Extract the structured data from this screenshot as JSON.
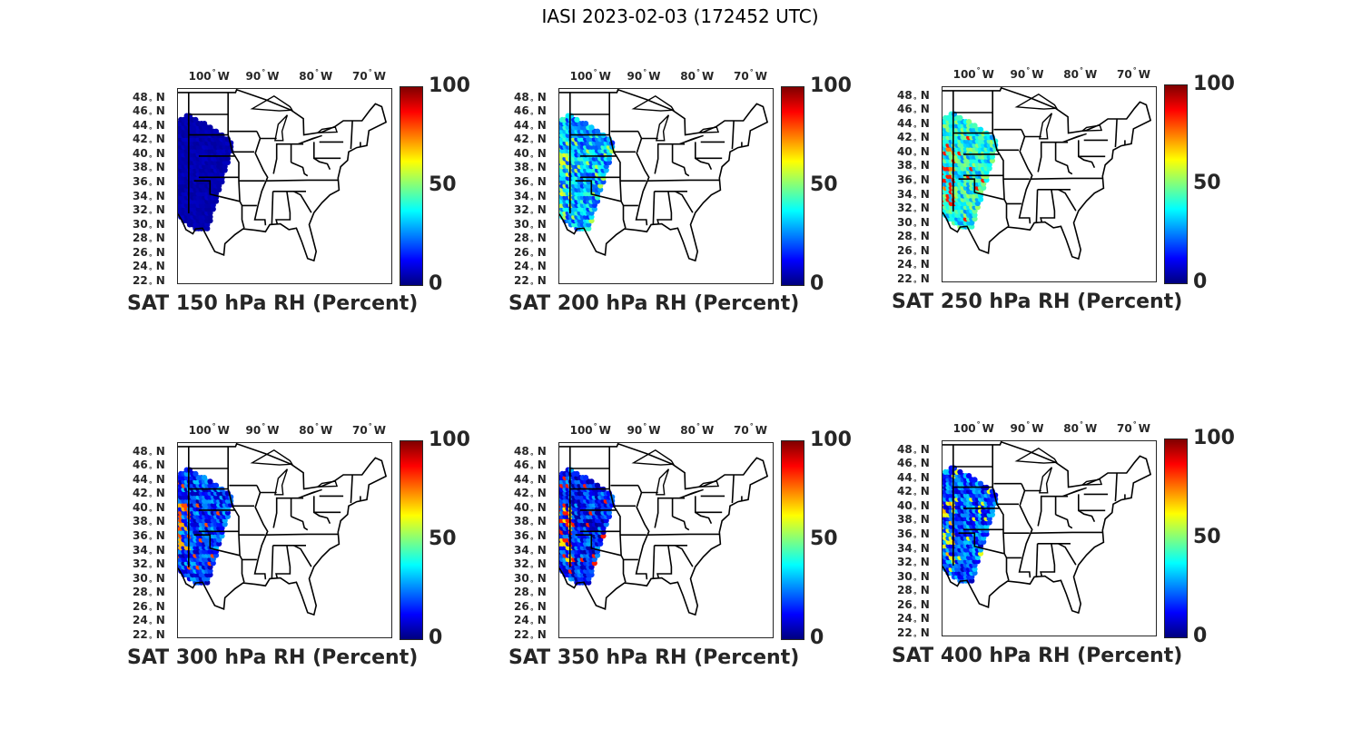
{
  "figure": {
    "title": "IASI 2023-02-03 (172452 UTC)"
  },
  "axes": {
    "lon_ticks": [
      "100",
      "90",
      "80",
      "70"
    ],
    "lon_hemisphere": "W",
    "lat_ticks": [
      "48",
      "46",
      "44",
      "42",
      "40",
      "38",
      "36",
      "34",
      "32",
      "30",
      "28",
      "26",
      "24",
      "22"
    ],
    "lat_hemisphere": "N",
    "degree_symbol": "°"
  },
  "colorbar": {
    "ticks": [
      "100",
      "50",
      "0"
    ],
    "colormap": "jet",
    "range": [
      0,
      100
    ]
  },
  "panels": [
    {
      "caption": "SAT 150 hPa RH (Percent)",
      "dominant_rh": 3,
      "humid_patches": []
    },
    {
      "caption": "SAT 200 hPa RH (Percent)",
      "dominant_rh": 30,
      "humid_patches": [
        55,
        60
      ]
    },
    {
      "caption": "SAT 250 hPa RH (Percent)",
      "dominant_rh": 40,
      "humid_patches": [
        85,
        75
      ]
    },
    {
      "caption": "SAT 300 hPa RH (Percent)",
      "dominant_rh": 18,
      "humid_patches": [
        80,
        70
      ]
    },
    {
      "caption": "SAT 350 hPa RH (Percent)",
      "dominant_rh": 16,
      "humid_patches": [
        85,
        65
      ]
    },
    {
      "caption": "SAT 400 hPa RH (Percent)",
      "dominant_rh": 20,
      "humid_patches": [
        60,
        70
      ]
    }
  ],
  "chart_data": {
    "type": "heatmap",
    "variable": "RH",
    "units": "Percent",
    "levels_hpa": [
      150,
      200,
      250,
      300,
      350,
      400
    ],
    "colorbar_range": [
      0,
      100
    ],
    "lon_range_deg_w": [
      106,
      66
    ],
    "lat_range_deg_n": [
      22,
      49.5
    ]
  }
}
